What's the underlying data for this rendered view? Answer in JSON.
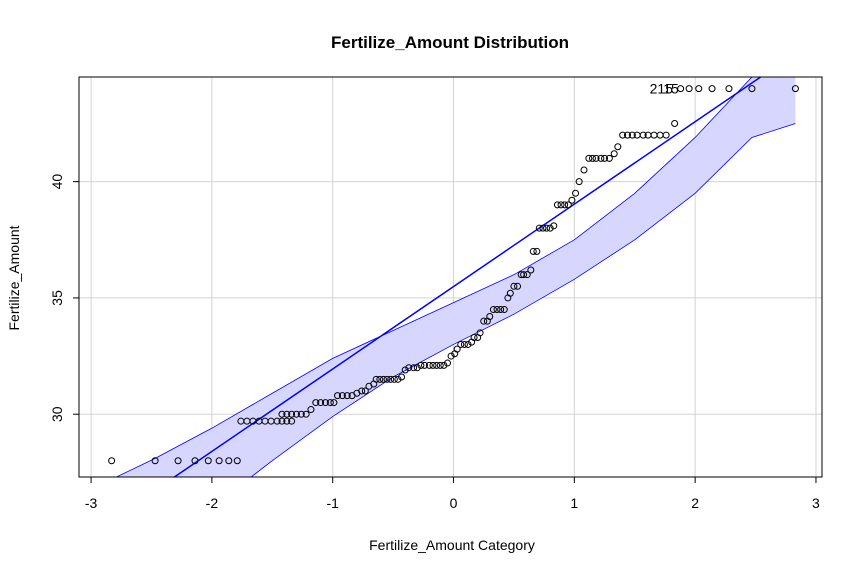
{
  "chart_data": {
    "type": "scatter",
    "title": "Fertilize_Amount Distribution",
    "xlabel": "Fertilize_Amount Category",
    "ylabel": "Fertilize_Amount",
    "xlim": [
      -3.1,
      3.05
    ],
    "ylim": [
      27.3,
      44.5
    ],
    "xticks": [
      "-3",
      "-2",
      "-1",
      "0",
      "1",
      "2",
      "3"
    ],
    "yticks": [
      "30",
      "35",
      "40"
    ],
    "grid": true,
    "annotations": [
      {
        "text": "215",
        "x": 1.72,
        "y": 44.0
      },
      {
        "text": "15",
        "x": 1.8,
        "y": 44.0
      }
    ],
    "series": [
      {
        "type": "scatter",
        "color": "#000000",
        "points": [
          [
            -2.83,
            28.0
          ],
          [
            -2.47,
            28.0
          ],
          [
            -2.28,
            28.0
          ],
          [
            -2.14,
            28.0
          ],
          [
            -2.03,
            28.0
          ],
          [
            -1.94,
            28.0
          ],
          [
            -1.86,
            28.0
          ],
          [
            -1.79,
            28.0
          ],
          [
            -1.76,
            29.7
          ],
          [
            -1.71,
            29.7
          ],
          [
            -1.66,
            29.7
          ],
          [
            -1.61,
            29.7
          ],
          [
            -1.56,
            29.7
          ],
          [
            -1.51,
            29.7
          ],
          [
            -1.46,
            29.7
          ],
          [
            -1.42,
            29.7
          ],
          [
            -1.38,
            29.7
          ],
          [
            -1.34,
            29.7
          ],
          [
            -1.42,
            30.0
          ],
          [
            -1.38,
            30.0
          ],
          [
            -1.34,
            30.0
          ],
          [
            -1.3,
            30.0
          ],
          [
            -1.26,
            30.0
          ],
          [
            -1.22,
            30.0
          ],
          [
            -1.18,
            30.2
          ],
          [
            -1.14,
            30.5
          ],
          [
            -1.1,
            30.5
          ],
          [
            -1.06,
            30.5
          ],
          [
            -1.02,
            30.5
          ],
          [
            -0.99,
            30.5
          ],
          [
            -0.96,
            30.8
          ],
          [
            -0.92,
            30.8
          ],
          [
            -0.88,
            30.8
          ],
          [
            -0.84,
            30.8
          ],
          [
            -0.8,
            30.9
          ],
          [
            -0.76,
            31.0
          ],
          [
            -0.73,
            31.0
          ],
          [
            -0.7,
            31.2
          ],
          [
            -0.66,
            31.3
          ],
          [
            -0.64,
            31.5
          ],
          [
            -0.61,
            31.5
          ],
          [
            -0.58,
            31.5
          ],
          [
            -0.55,
            31.5
          ],
          [
            -0.52,
            31.5
          ],
          [
            -0.49,
            31.5
          ],
          [
            -0.46,
            31.5
          ],
          [
            -0.43,
            31.6
          ],
          [
            -0.4,
            31.9
          ],
          [
            -0.37,
            32.0
          ],
          [
            -0.33,
            32.0
          ],
          [
            -0.3,
            32.0
          ],
          [
            -0.27,
            32.1
          ],
          [
            -0.24,
            32.1
          ],
          [
            -0.2,
            32.1
          ],
          [
            -0.17,
            32.1
          ],
          [
            -0.14,
            32.1
          ],
          [
            -0.11,
            32.1
          ],
          [
            -0.08,
            32.1
          ],
          [
            -0.05,
            32.2
          ],
          [
            -0.02,
            32.5
          ],
          [
            0.01,
            32.6
          ],
          [
            0.03,
            32.8
          ],
          [
            0.06,
            33.0
          ],
          [
            0.09,
            33.0
          ],
          [
            0.12,
            33.0
          ],
          [
            0.15,
            33.1
          ],
          [
            0.17,
            33.3
          ],
          [
            0.2,
            33.3
          ],
          [
            0.22,
            33.5
          ],
          [
            0.25,
            34.0
          ],
          [
            0.28,
            34.0
          ],
          [
            0.3,
            34.2
          ],
          [
            0.33,
            34.5
          ],
          [
            0.36,
            34.5
          ],
          [
            0.39,
            34.5
          ],
          [
            0.42,
            34.5
          ],
          [
            0.45,
            35.0
          ],
          [
            0.47,
            35.2
          ],
          [
            0.5,
            35.5
          ],
          [
            0.53,
            35.5
          ],
          [
            0.56,
            36.0
          ],
          [
            0.58,
            36.0
          ],
          [
            0.61,
            36.0
          ],
          [
            0.64,
            36.2
          ],
          [
            0.66,
            37.0
          ],
          [
            0.69,
            37.0
          ],
          [
            0.71,
            38.0
          ],
          [
            0.74,
            38.0
          ],
          [
            0.77,
            38.0
          ],
          [
            0.8,
            38.0
          ],
          [
            0.83,
            38.1
          ],
          [
            0.86,
            39.0
          ],
          [
            0.89,
            39.0
          ],
          [
            0.92,
            39.0
          ],
          [
            0.95,
            39.0
          ],
          [
            0.98,
            39.2
          ],
          [
            1.01,
            39.5
          ],
          [
            1.04,
            40.0
          ],
          [
            1.08,
            40.5
          ],
          [
            1.12,
            41.0
          ],
          [
            1.15,
            41.0
          ],
          [
            1.18,
            41.0
          ],
          [
            1.22,
            41.0
          ],
          [
            1.25,
            41.0
          ],
          [
            1.29,
            41.0
          ],
          [
            1.33,
            41.2
          ],
          [
            1.36,
            41.5
          ],
          [
            1.4,
            42.0
          ],
          [
            1.44,
            42.0
          ],
          [
            1.48,
            42.0
          ],
          [
            1.52,
            42.0
          ],
          [
            1.57,
            42.0
          ],
          [
            1.61,
            42.0
          ],
          [
            1.66,
            42.0
          ],
          [
            1.71,
            42.0
          ],
          [
            1.76,
            42.0
          ],
          [
            1.83,
            42.5
          ],
          [
            1.88,
            44.0
          ],
          [
            1.95,
            44.0
          ],
          [
            2.03,
            44.0
          ],
          [
            2.14,
            44.0
          ],
          [
            2.28,
            44.0
          ],
          [
            2.47,
            44.0
          ],
          [
            2.83,
            44.0
          ]
        ]
      },
      {
        "type": "line",
        "name": "reference line",
        "color": "#0000ff",
        "points": [
          [
            -3.1,
            24.5
          ],
          [
            3.05,
            46.3
          ]
        ]
      },
      {
        "type": "band",
        "name": "confidence envelope",
        "color": "#0000ff",
        "fill": "#d6d6ff",
        "upper": [
          [
            -2.83,
            27.2
          ],
          [
            -2.47,
            28.1
          ],
          [
            -2.0,
            29.4
          ],
          [
            -1.5,
            30.9
          ],
          [
            -1.0,
            32.4
          ],
          [
            -0.5,
            33.6
          ],
          [
            0.0,
            34.8
          ],
          [
            0.5,
            36.0
          ],
          [
            1.0,
            37.5
          ],
          [
            1.5,
            39.5
          ],
          [
            2.0,
            41.9
          ],
          [
            2.47,
            44.5
          ],
          [
            2.83,
            46.5
          ]
        ],
        "lower": [
          [
            -2.83,
            22.5
          ],
          [
            -2.47,
            24.1
          ],
          [
            -2.0,
            26.0
          ],
          [
            -1.5,
            28.0
          ],
          [
            -1.0,
            29.9
          ],
          [
            -0.5,
            31.6
          ],
          [
            0.0,
            33.0
          ],
          [
            0.5,
            34.3
          ],
          [
            1.0,
            35.8
          ],
          [
            1.5,
            37.5
          ],
          [
            2.0,
            39.5
          ],
          [
            2.47,
            41.9
          ],
          [
            2.83,
            42.5
          ]
        ]
      }
    ]
  }
}
